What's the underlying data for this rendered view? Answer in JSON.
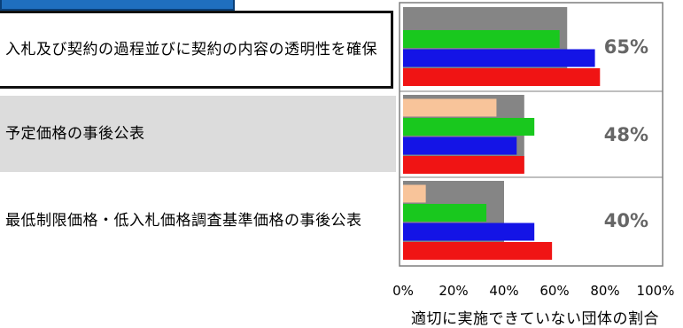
{
  "chart_data": {
    "type": "bar",
    "orientation": "horizontal",
    "xlabel": "適切に実施できていない団体の割合",
    "ylabel": "",
    "xlim": [
      0,
      100
    ],
    "xticks": [
      "0%",
      "20%",
      "40%",
      "60%",
      "80%",
      "100%"
    ],
    "grid": false,
    "categories": [
      "入札及び契約の過程並びに契約の内容の透明性を確保",
      "予定価格の事後公表",
      "最低制限価格・低入札価格調査基準価格の事後公表"
    ],
    "overall_values": [
      65,
      48,
      40
    ],
    "overall_labels": [
      "65%",
      "48%",
      "40%"
    ],
    "series": [
      {
        "color": "#f8c49a",
        "values": [
          null,
          37,
          9
        ]
      },
      {
        "color": "#19c81e",
        "values": [
          62,
          52,
          33
        ]
      },
      {
        "color": "#1414e6",
        "values": [
          76,
          45,
          52
        ]
      },
      {
        "color": "#f01414",
        "values": [
          78,
          48,
          59
        ]
      }
    ],
    "overall_color": "#858585"
  }
}
